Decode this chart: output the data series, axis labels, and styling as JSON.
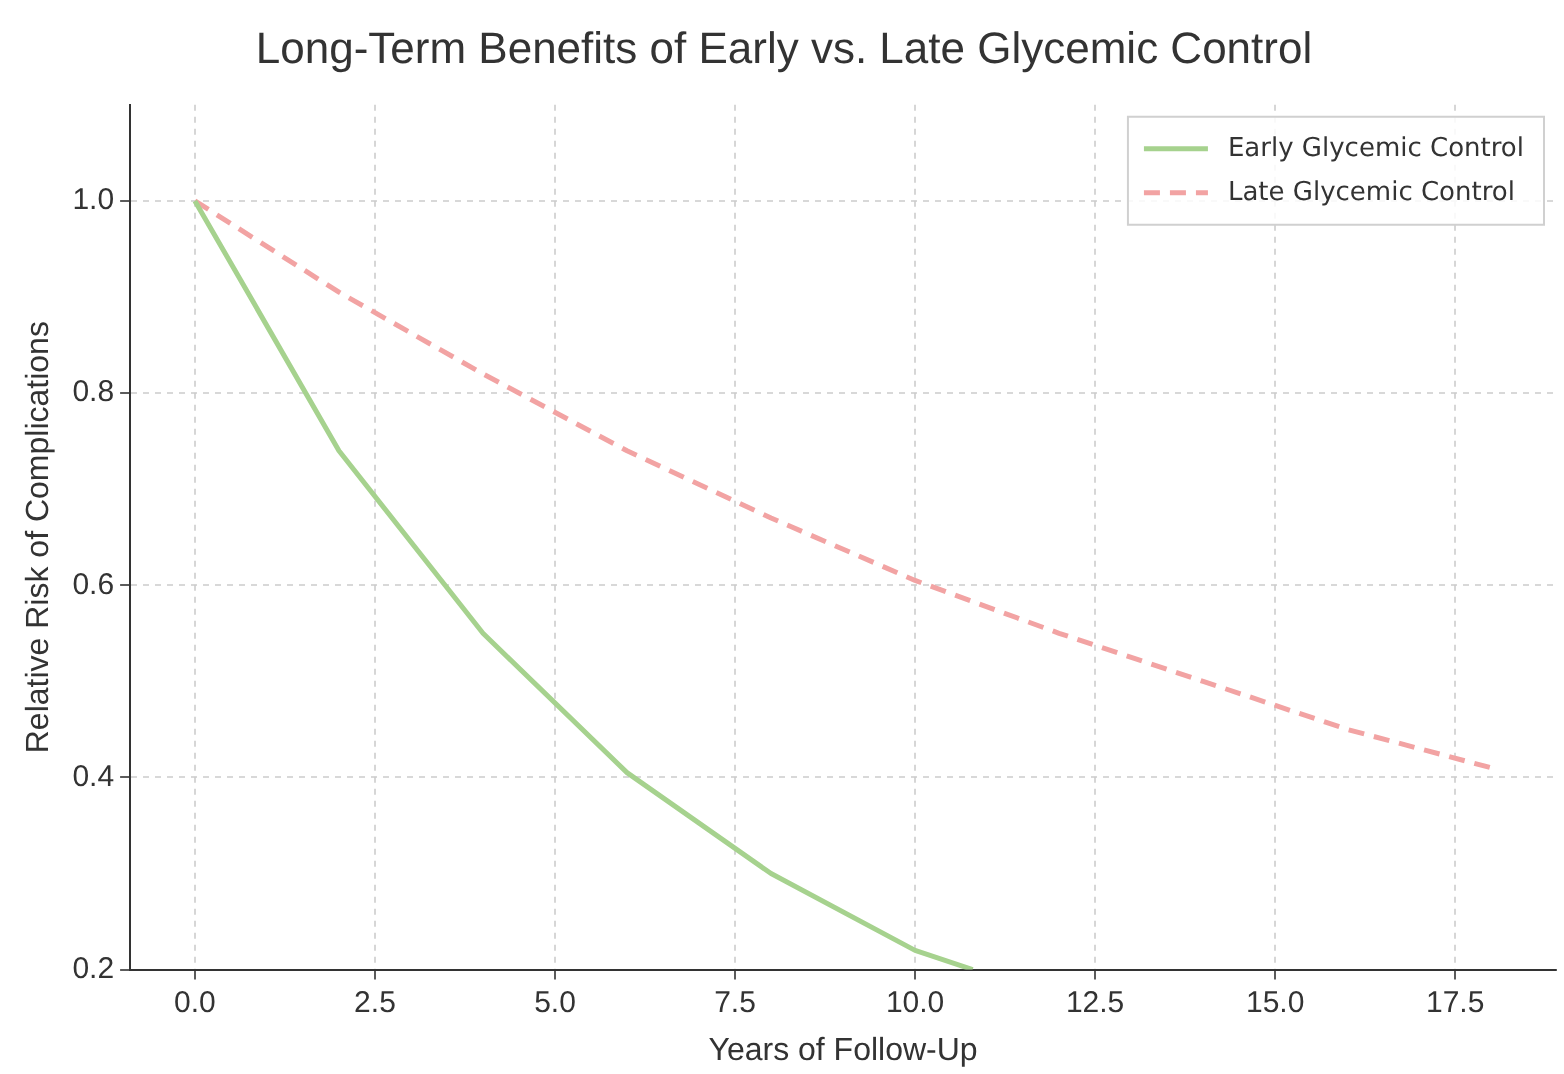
{
  "chart_data": {
    "type": "line",
    "title": "Long-Term Benefits of Early vs. Late Glycemic Control",
    "xlabel": "Years of Follow-Up",
    "ylabel": "Relative Risk of Complications",
    "x": [
      0,
      2,
      4,
      6,
      8,
      10,
      12,
      14,
      16,
      18
    ],
    "series": [
      {
        "name": "Early Glycemic Control",
        "color": "#a6d28e",
        "line_style": "solid",
        "x": [
          0,
          2,
          4,
          6,
          8,
          10,
          10.8
        ],
        "values": [
          1.0,
          0.74,
          0.55,
          0.405,
          0.3,
          0.22,
          0.2
        ]
      },
      {
        "name": "Late Glycemic Control",
        "color": "#f2a3a3",
        "line_style": "dashed",
        "values": [
          1.0,
          0.905,
          0.82,
          0.74,
          0.67,
          0.605,
          0.55,
          0.5,
          0.45,
          0.41
        ]
      }
    ],
    "xlim": [
      -0.9,
      18.9
    ],
    "xticks": [
      {
        "value": 0,
        "label": "0.0"
      },
      {
        "value": 2.5,
        "label": "2.5"
      },
      {
        "value": 5,
        "label": "5.0"
      },
      {
        "value": 7.5,
        "label": "7.5"
      },
      {
        "value": 10,
        "label": "10.0"
      },
      {
        "value": 12.5,
        "label": "12.5"
      },
      {
        "value": 15,
        "label": "15.0"
      },
      {
        "value": 17.5,
        "label": "17.5"
      }
    ],
    "ylim": [
      0.2,
      1.1
    ],
    "yticks": [
      {
        "value": 0.2,
        "label": "0.2"
      },
      {
        "value": 0.4,
        "label": "0.4"
      },
      {
        "value": 0.6,
        "label": "0.6"
      },
      {
        "value": 0.8,
        "label": "0.8"
      },
      {
        "value": 1.0,
        "label": "1.0"
      }
    ],
    "grid": true,
    "legend": "top right",
    "marker": "none"
  }
}
